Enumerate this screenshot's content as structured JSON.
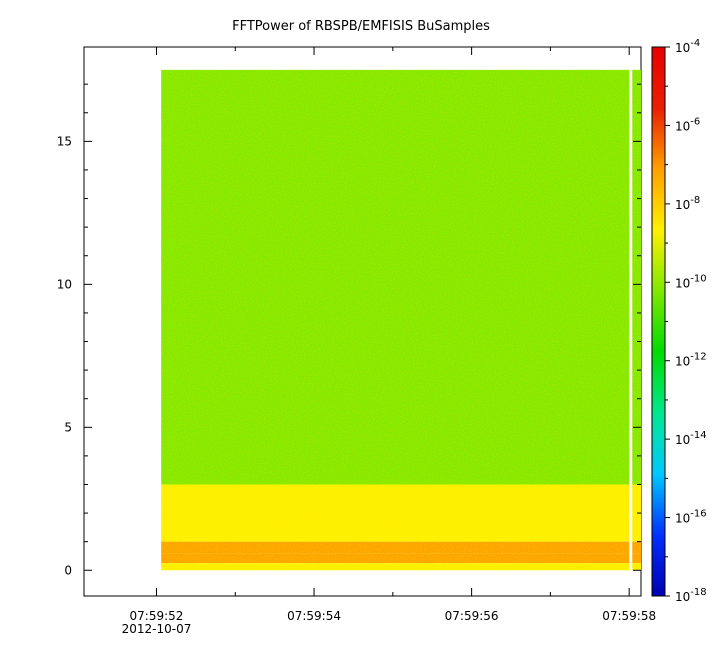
{
  "chart_data": {
    "type": "heatmap",
    "title": "FFTPower of RBSPB/EMFISIS  BuSamples",
    "xlabel": "",
    "ylabel": "",
    "x_tick_labels": [
      "07:59:52",
      "07:59:54",
      "07:59:56",
      "07:59:58"
    ],
    "x_tick_sublabel": "2012-10-07",
    "x_range_seconds_after_075952": [
      -0.92,
      6.15
    ],
    "data_x_range_seconds_after_075952": [
      0.06,
      6.15
    ],
    "gap_at_seconds_after_075952": 6.02,
    "y_tick_labels": [
      "0",
      "5",
      "10",
      "15"
    ],
    "y_ticks": [
      0,
      5,
      10,
      15
    ],
    "ylim": [
      -0.9,
      18.3
    ],
    "data_y_range": [
      0,
      17.5
    ],
    "z_scale": "log",
    "z_range": [
      1e-18,
      0.0001
    ],
    "colorbar_tick_labels": [
      {
        "base": "10",
        "exp": "-4"
      },
      {
        "base": "10",
        "exp": "-6"
      },
      {
        "base": "10",
        "exp": "-8"
      },
      {
        "base": "10",
        "exp": "-10"
      },
      {
        "base": "10",
        "exp": "-12"
      },
      {
        "base": "10",
        "exp": "-14"
      },
      {
        "base": "10",
        "exp": "-16"
      },
      {
        "base": "10",
        "exp": "-18"
      }
    ],
    "colorbar_exponents": [
      -4,
      -6,
      -8,
      -10,
      -12,
      -14,
      -16,
      -18
    ],
    "frequency_bands": [
      {
        "y_from": 3.0,
        "y_to": 17.5,
        "log10_power": -10.2
      },
      {
        "y_from": 1.0,
        "y_to": 3.0,
        "log10_power": -8.5
      },
      {
        "y_from": 0.6,
        "y_to": 1.0,
        "log10_power": -7.8
      },
      {
        "y_from": 0.25,
        "y_to": 0.6,
        "log10_power": -6.5
      },
      {
        "y_from": 0.0,
        "y_to": 0.25,
        "log10_power": -8.3
      }
    ],
    "grid": false,
    "colormap": [
      "#0000b0",
      "#0030ff",
      "#00c8ff",
      "#00e890",
      "#00dc00",
      "#80e800",
      "#fff000",
      "#ffa000",
      "#e82000",
      "#e80000"
    ]
  }
}
